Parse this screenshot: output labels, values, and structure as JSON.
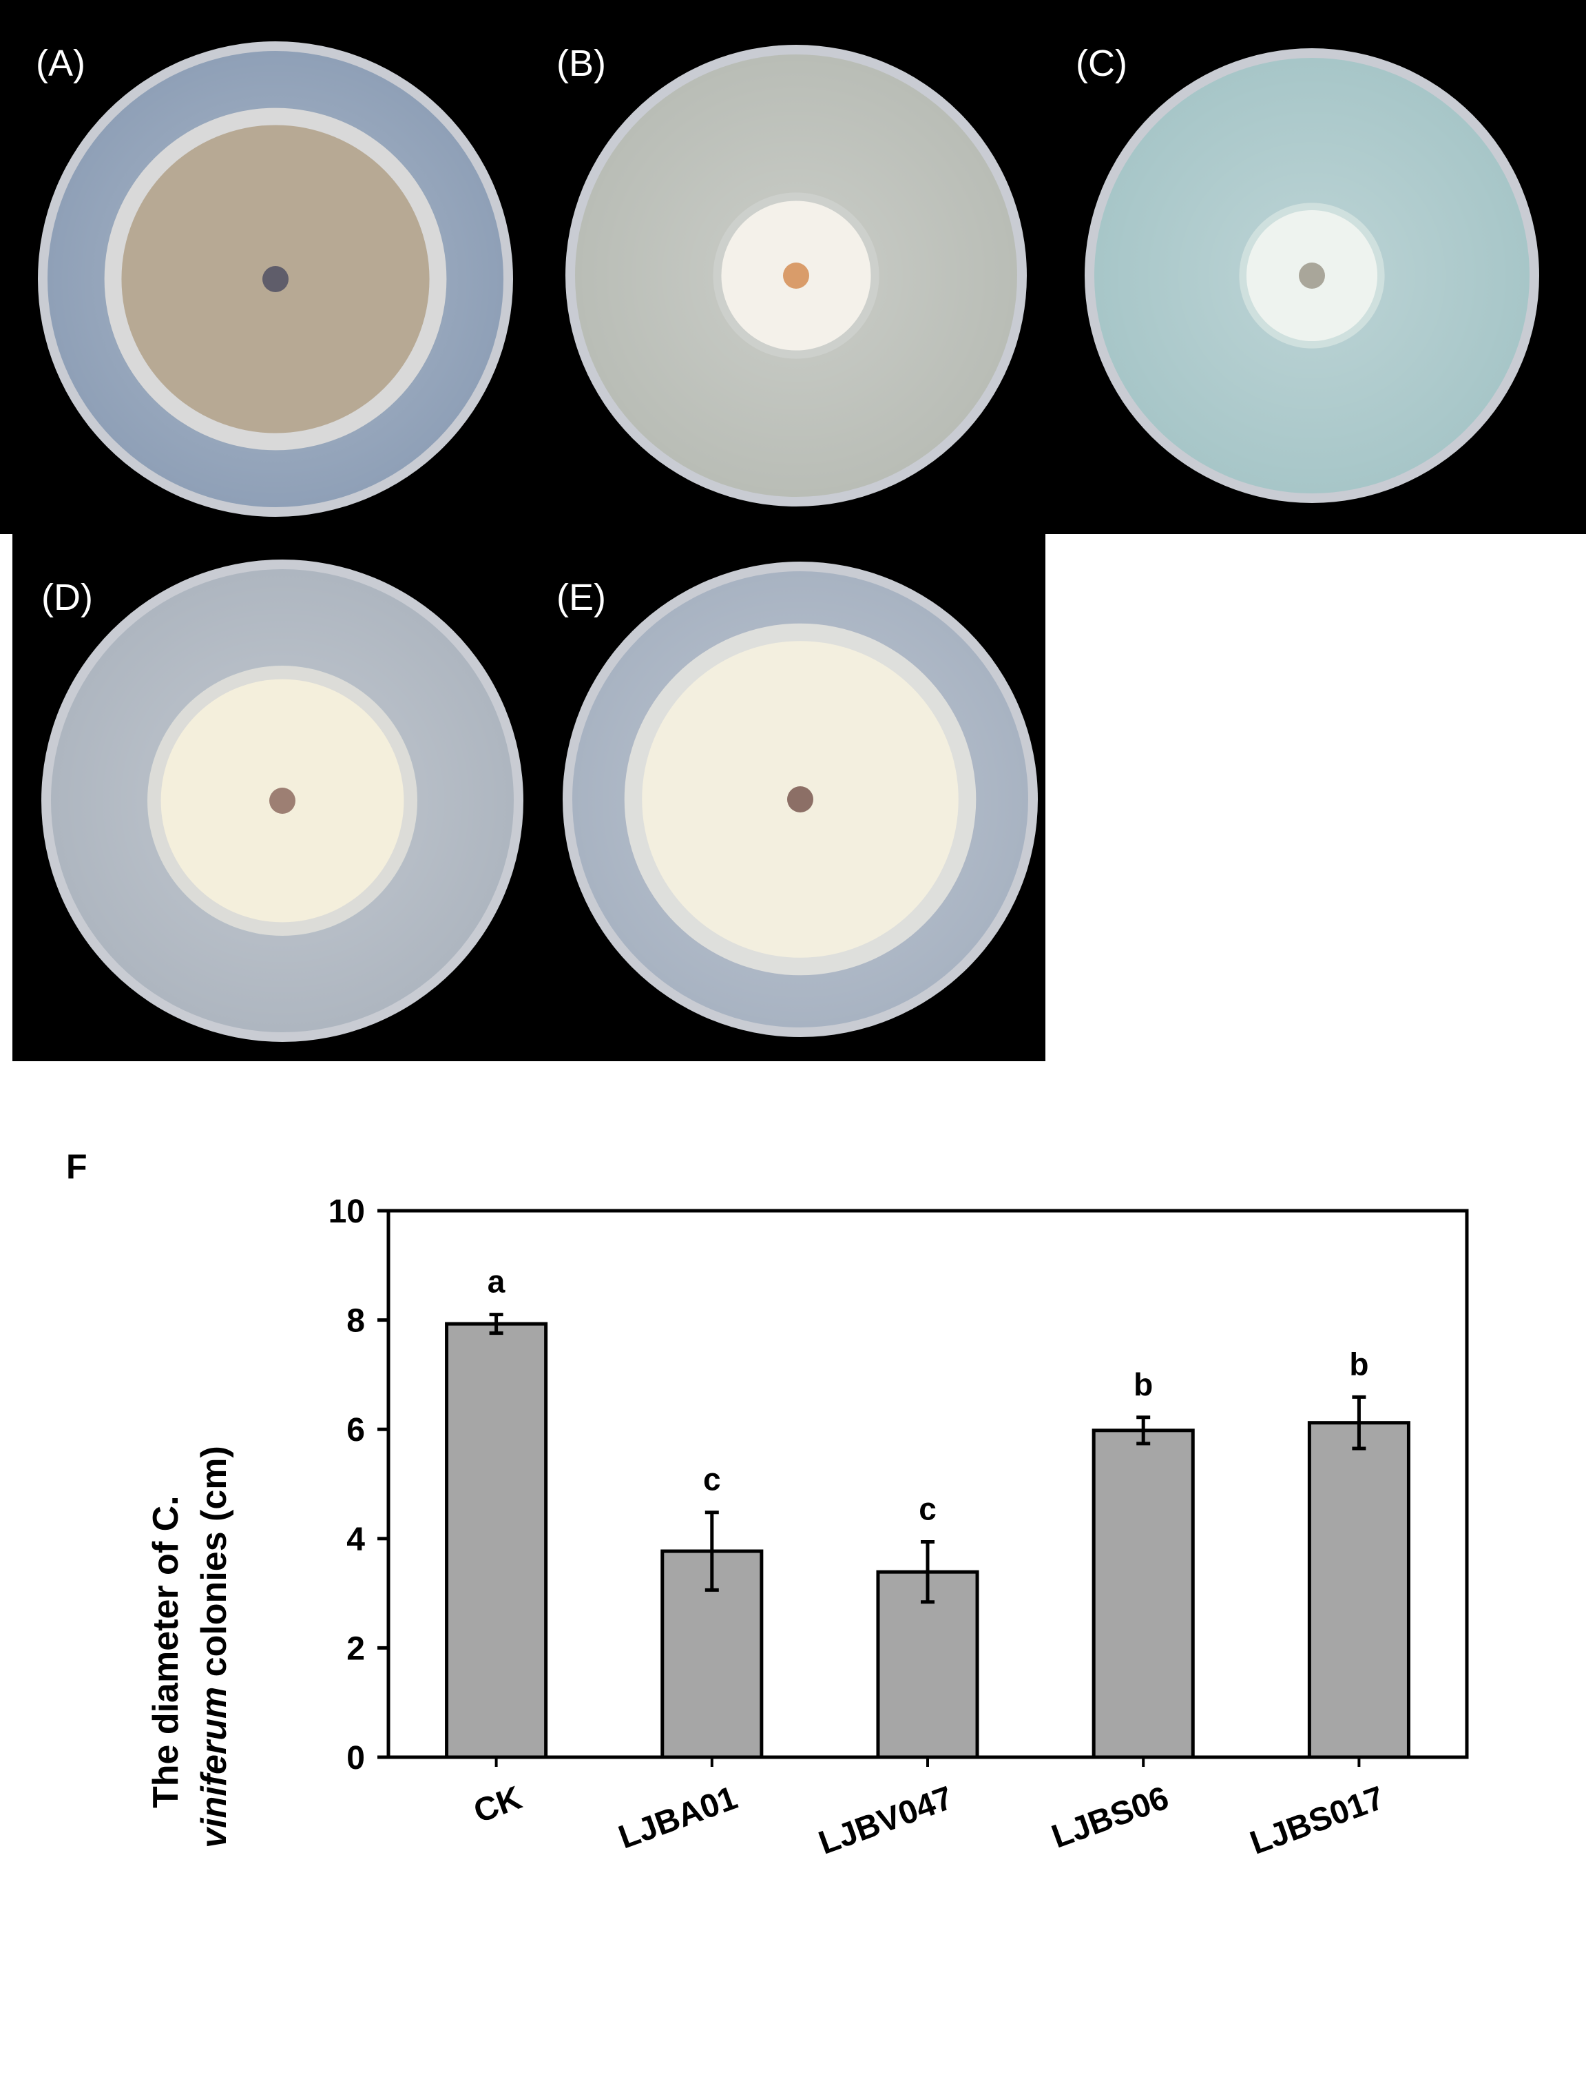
{
  "panels": [
    {
      "label": "(A)",
      "colony_diameter_fraction": 0.72,
      "halo": "#d9d9d9",
      "colony": "#b7a994",
      "center": "#5f5d6a",
      "medium": "#8fa0b7"
    },
    {
      "label": "(B)",
      "colony_diameter_fraction": 0.36,
      "halo": "#cdd0cc",
      "colony": "#f4f1ea",
      "center": "#d99c6a",
      "medium": "#b9bdb6"
    },
    {
      "label": "(C)",
      "colony_diameter_fraction": 0.32,
      "halo": "#cfe0de",
      "colony": "#eef3ef",
      "center": "#a9a69a",
      "medium": "#a7c6c8"
    },
    {
      "label": "(D)",
      "colony_diameter_fraction": 0.56,
      "halo": "#dcdcd8",
      "colony": "#f4efdc",
      "center": "#9d7f73",
      "medium": "#aeb6c0"
    },
    {
      "label": "(E)",
      "colony_diameter_fraction": 0.74,
      "halo": "#dedfdc",
      "colony": "#f3efdf",
      "center": "#8c6f66",
      "medium": "#a8b3c2"
    }
  ],
  "figure_label": "F",
  "chart_data": {
    "type": "bar",
    "title": "",
    "ylabel_line1": "The diameter of C.",
    "ylabel_line2_italic": "viniferum",
    "ylabel_line2_rest": " colonies (cm)",
    "xlabel": "",
    "categories": [
      "CK",
      "LJBA01",
      "LJBV047",
      "LJBS06",
      "LJBS017"
    ],
    "values": [
      7.93,
      3.77,
      3.39,
      5.98,
      6.12
    ],
    "errors": [
      0.17,
      0.71,
      0.55,
      0.24,
      0.47
    ],
    "significance": [
      "a",
      "c",
      "c",
      "b",
      "b"
    ],
    "ylim": [
      0,
      10
    ],
    "yticks": [
      "0",
      "2",
      "4",
      "6",
      "8",
      "10"
    ],
    "bar_color": "#a6a6a6",
    "grid": false,
    "legend": "none"
  }
}
